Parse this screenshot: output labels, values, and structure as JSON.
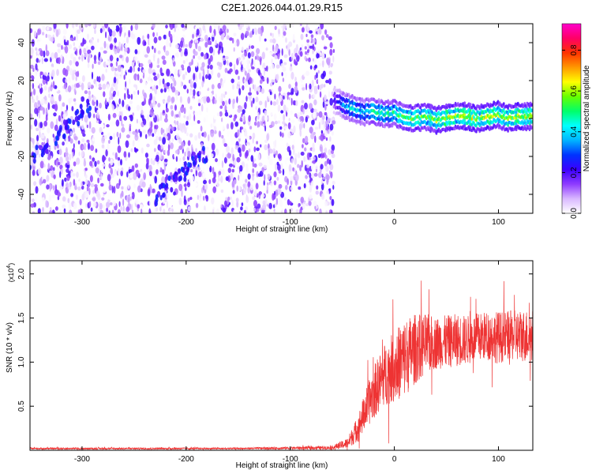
{
  "title": "C2E1.2026.044.01.29.R15",
  "chart_data": [
    {
      "type": "heatmap",
      "xlabel": "Height of straight line (km)",
      "ylabel": "Frequency (Hz)",
      "xlim": [
        -350,
        133
      ],
      "ylim": [
        -50,
        50
      ],
      "xticks": [
        -300,
        -200,
        -100,
        0,
        100
      ],
      "yticks": [
        -40,
        -20,
        0,
        20,
        40
      ],
      "colorbar": {
        "label": "Normalized spectral amplitude",
        "range": [
          0,
          0.93
        ],
        "ticks": [
          0.0,
          0.2,
          0.4,
          0.6,
          0.8
        ],
        "colors": [
          "#ffffff",
          "#d9b8ff",
          "#8f3cff",
          "#3b00ff",
          "#0033ff",
          "#00b4ff",
          "#00ffff",
          "#00ff6a",
          "#66ff00",
          "#ffff00",
          "#ff9900",
          "#ff3300",
          "#ff0066",
          "#ff00cc"
        ]
      },
      "noise_region": {
        "x": [
          -350,
          -58
        ],
        "level_range": [
          0.0,
          0.22
        ]
      },
      "signal_trace": {
        "x": [
          -58,
          -50,
          -40,
          -30,
          -20,
          -10,
          0,
          10,
          20,
          30,
          40,
          50,
          60,
          70,
          80,
          90,
          100,
          110,
          120,
          133
        ],
        "freq": [
          10,
          7,
          5,
          3,
          4,
          2,
          3,
          1,
          0,
          1,
          -1,
          0,
          2,
          1,
          0,
          1,
          2,
          0,
          1,
          1
        ],
        "amplitude": [
          0.2,
          0.35,
          0.45,
          0.4,
          0.5,
          0.45,
          0.5,
          0.55,
          0.6,
          0.55,
          0.6,
          0.65,
          0.6,
          0.65,
          0.6,
          0.65,
          0.6,
          0.6,
          0.65,
          0.6
        ]
      },
      "diagonal_streaks": [
        {
          "x": [
            -350,
            -290
          ],
          "freq": [
            -22,
            8
          ]
        },
        {
          "x": [
            -230,
            -180
          ],
          "freq": [
            -42,
            -18
          ]
        }
      ]
    },
    {
      "type": "line",
      "xlabel": "Height of straight line (km)",
      "ylabel": "SNR (10 * v/v)",
      "y_multiplier": "(x10",
      "y_multiplier_exp": "4",
      "y_multiplier_close": ")",
      "xlim": [
        -350,
        133
      ],
      "ylim": [
        0,
        2.15
      ],
      "xticks": [
        -300,
        -200,
        -100,
        0,
        100
      ],
      "yticks": [
        0.5,
        1.0,
        1.5,
        2.0
      ],
      "line_color": "#ee3333",
      "series": [
        {
          "x": [
            -350,
            -250,
            -150,
            -60,
            -45,
            -35,
            -28,
            -20,
            -10,
            0,
            10,
            20,
            30,
            40,
            50,
            60,
            70,
            80,
            90,
            100,
            110,
            120,
            133
          ],
          "center": [
            0.02,
            0.02,
            0.02,
            0.03,
            0.08,
            0.25,
            0.45,
            0.65,
            0.85,
            0.95,
            1.05,
            1.15,
            1.2,
            1.22,
            1.23,
            1.25,
            1.25,
            1.28,
            1.3,
            1.28,
            1.3,
            1.3,
            1.3
          ],
          "spread": [
            0.01,
            0.01,
            0.01,
            0.02,
            0.06,
            0.15,
            0.22,
            0.3,
            0.35,
            0.4,
            0.45,
            0.4,
            0.35,
            0.3,
            0.3,
            0.3,
            0.28,
            0.28,
            0.28,
            0.3,
            0.28,
            0.3,
            0.3
          ]
        }
      ]
    }
  ]
}
